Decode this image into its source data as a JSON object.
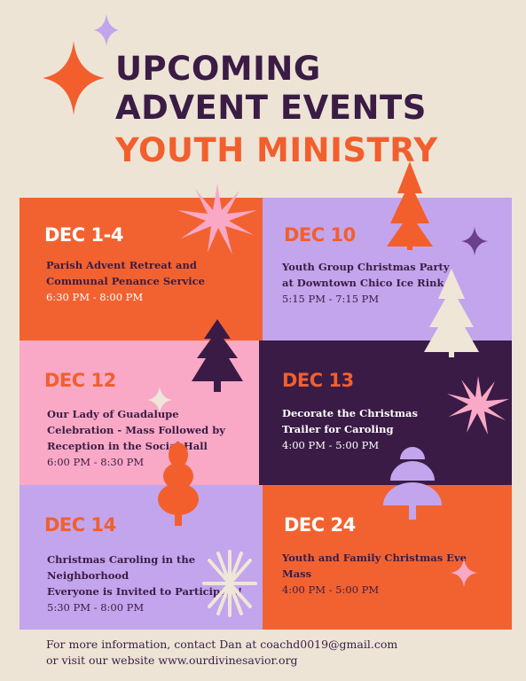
{
  "title": {
    "line1": "UPCOMING",
    "line2": "ADVENT EVENTS",
    "line3": "YOUTH MINISTRY"
  },
  "events": [
    {
      "date": "DEC 1-4",
      "name_lines": [
        "Parish Advent Retreat and",
        "Communal Penance Service"
      ],
      "time": "6:30 PM - 8:00 PM"
    },
    {
      "date": "DEC 10",
      "name_lines": [
        "Youth Group Christmas Party",
        "at Downtown Chico Ice Rink"
      ],
      "time": "5:15 PM - 7:15 PM"
    },
    {
      "date": "DEC 12",
      "name_lines": [
        "Our Lady of Guadalupe",
        "Celebration - Mass Followed by",
        "Reception in the Social Hall"
      ],
      "time": "6:00 PM - 8:30 PM"
    },
    {
      "date": "DEC 13",
      "name_lines": [
        "Decorate the Christmas",
        "Trailer for Caroling"
      ],
      "time": "4:00 PM - 5:00 PM"
    },
    {
      "date": "DEC 14",
      "name_lines": [
        "Christmas Caroling in the",
        "Neighborhood",
        "Everyone is Invited to Participate!"
      ],
      "time": "5:30 PM - 8:00 PM"
    },
    {
      "date": "DEC 24",
      "name_lines": [
        "Youth and Family Christmas Eve",
        "Mass"
      ],
      "time": "4:00 PM - 5:00 PM"
    }
  ],
  "footer": {
    "line1": "For more information, contact Dan at coachd0019@gmail.com",
    "line2": "or visit our website www.ourdivinesavior.org"
  },
  "colors": {
    "background": "#ede4d6",
    "dark_purple": "#3a1b45",
    "orange": "#f26230",
    "lavender": "#c2a5ec",
    "pink": "#f9a9c6"
  },
  "decorations": [
    "sparkle-icon",
    "starburst-icon",
    "christmas-tree-icon",
    "snowflake-icon"
  ]
}
